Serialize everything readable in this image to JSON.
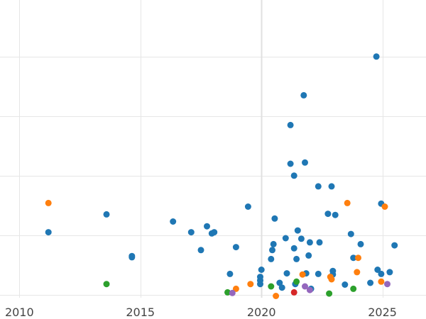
{
  "chart_data": {
    "type": "scatter",
    "title": "",
    "xlabel": "",
    "ylabel": "",
    "xlim": [
      2009.2,
      2026.8
    ],
    "ylim": [
      -5,
      495
    ],
    "grid": true,
    "x_ticks": [
      2010,
      2015,
      2020,
      2025
    ],
    "x_tick_labels": [
      "2010",
      "2015",
      "2020",
      "2025"
    ],
    "y_grid": [
      0,
      100,
      200,
      300,
      400
    ],
    "series": [
      {
        "color": "#1f77b4",
        "points": [
          [
            2011.2,
            105
          ],
          [
            2013.6,
            135
          ],
          [
            2014.65,
            65
          ],
          [
            2014.65,
            63
          ],
          [
            2016.35,
            123
          ],
          [
            2017.1,
            105
          ],
          [
            2017.5,
            75
          ],
          [
            2017.75,
            115
          ],
          [
            2017.95,
            103
          ],
          [
            2018.05,
            105
          ],
          [
            2018.7,
            35
          ],
          [
            2018.95,
            80
          ],
          [
            2019.45,
            148
          ],
          [
            2019.95,
            18
          ],
          [
            2019.95,
            24
          ],
          [
            2019.95,
            30
          ],
          [
            2020.0,
            42
          ],
          [
            2020.4,
            60
          ],
          [
            2020.45,
            75
          ],
          [
            2020.5,
            85
          ],
          [
            2020.55,
            128
          ],
          [
            2020.75,
            20
          ],
          [
            2020.85,
            12
          ],
          [
            2021.0,
            95
          ],
          [
            2021.05,
            36
          ],
          [
            2021.2,
            285
          ],
          [
            2021.2,
            220
          ],
          [
            2021.35,
            200
          ],
          [
            2021.35,
            78
          ],
          [
            2021.4,
            18
          ],
          [
            2021.45,
            60
          ],
          [
            2021.5,
            108
          ],
          [
            2021.65,
            94
          ],
          [
            2021.75,
            335
          ],
          [
            2021.8,
            222
          ],
          [
            2021.85,
            36
          ],
          [
            2021.95,
            66
          ],
          [
            2022.0,
            88
          ],
          [
            2022.05,
            10
          ],
          [
            2022.35,
            35
          ],
          [
            2022.35,
            182
          ],
          [
            2022.4,
            88
          ],
          [
            2022.75,
            136
          ],
          [
            2022.9,
            182
          ],
          [
            2022.95,
            34
          ],
          [
            2022.95,
            40
          ],
          [
            2023.05,
            134
          ],
          [
            2023.45,
            17
          ],
          [
            2023.7,
            102
          ],
          [
            2023.8,
            62
          ],
          [
            2024.1,
            85
          ],
          [
            2024.5,
            20
          ],
          [
            2024.75,
            400
          ],
          [
            2024.8,
            42
          ],
          [
            2024.95,
            153
          ],
          [
            2024.95,
            35
          ],
          [
            2025.3,
            38
          ],
          [
            2025.5,
            83
          ]
        ]
      },
      {
        "color": "#ff7f0e",
        "points": [
          [
            2011.2,
            154
          ],
          [
            2018.95,
            10
          ],
          [
            2019.55,
            18
          ],
          [
            2020.6,
            -2
          ],
          [
            2021.7,
            34
          ],
          [
            2022.85,
            30
          ],
          [
            2022.9,
            26
          ],
          [
            2023.55,
            154
          ],
          [
            2023.95,
            38
          ],
          [
            2024.0,
            62
          ],
          [
            2024.95,
            22
          ],
          [
            2025.1,
            148
          ]
        ]
      },
      {
        "color": "#2ca02c",
        "points": [
          [
            2013.6,
            18
          ],
          [
            2018.6,
            4
          ],
          [
            2020.4,
            14
          ],
          [
            2021.45,
            22
          ],
          [
            2022.8,
            2
          ],
          [
            2023.8,
            10
          ]
        ]
      },
      {
        "color": "#d62728",
        "points": [
          [
            2021.35,
            4
          ]
        ]
      },
      {
        "color": "#9467bd",
        "points": [
          [
            2018.8,
            3
          ],
          [
            2021.8,
            14
          ],
          [
            2022.0,
            8
          ],
          [
            2025.2,
            18
          ]
        ]
      }
    ]
  }
}
